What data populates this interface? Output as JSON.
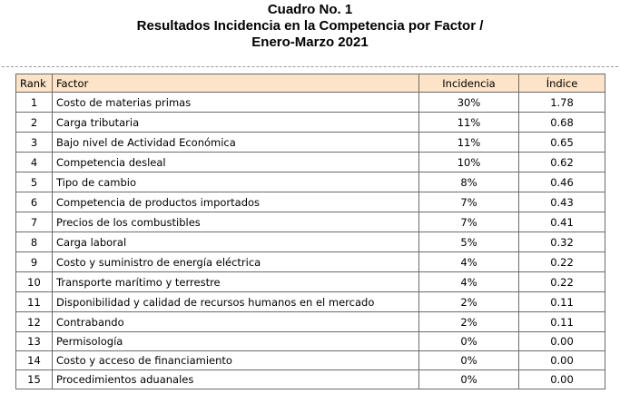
{
  "document": {
    "title_lines": [
      "Cuadro No. 1",
      "Resultados Incidencia en la Competencia por Factor /",
      "Enero-Marzo 2021"
    ]
  },
  "table": {
    "headers": {
      "rank": "Rank",
      "factor": "Factor",
      "incidencia": "Incidencia",
      "indice": "Índice"
    },
    "header_color": "#fde3c7",
    "rows": [
      {
        "rank": "1",
        "factor": "Costo de materias primas",
        "incidencia": "30%",
        "indice": "1.78"
      },
      {
        "rank": "2",
        "factor": "Carga tributaria",
        "incidencia": "11%",
        "indice": "0.68"
      },
      {
        "rank": "3",
        "factor": "Bajo nivel de Actividad Económica",
        "incidencia": "11%",
        "indice": "0.65"
      },
      {
        "rank": "4",
        "factor": "Competencia desleal",
        "incidencia": "10%",
        "indice": "0.62"
      },
      {
        "rank": "5",
        "factor": "Tipo de cambio",
        "incidencia": "8%",
        "indice": "0.46"
      },
      {
        "rank": "6",
        "factor": "Competencia de productos importados",
        "incidencia": "7%",
        "indice": "0.43"
      },
      {
        "rank": "7",
        "factor": "Precios de los combustibles",
        "incidencia": "7%",
        "indice": "0.41"
      },
      {
        "rank": "8",
        "factor": "Carga laboral",
        "incidencia": "5%",
        "indice": "0.32"
      },
      {
        "rank": "9",
        "factor": "Costo y suministro de energía eléctrica",
        "incidencia": "4%",
        "indice": "0.22"
      },
      {
        "rank": "10",
        "factor": "Transporte marítimo y terrestre",
        "incidencia": "4%",
        "indice": "0.22"
      },
      {
        "rank": "11",
        "factor": "Disponibilidad y calidad de recursos humanos en el mercado",
        "incidencia": "2%",
        "indice": "0.11"
      },
      {
        "rank": "12",
        "factor": "Contrabando",
        "incidencia": "2%",
        "indice": "0.11"
      },
      {
        "rank": "13",
        "factor": "Permisología",
        "incidencia": "0%",
        "indice": "0.00"
      },
      {
        "rank": "14",
        "factor": "Costo y acceso de financiamiento",
        "incidencia": "0%",
        "indice": "0.00"
      },
      {
        "rank": "15",
        "factor": "Procedimientos aduanales",
        "incidencia": "0%",
        "indice": "0.00"
      }
    ]
  }
}
